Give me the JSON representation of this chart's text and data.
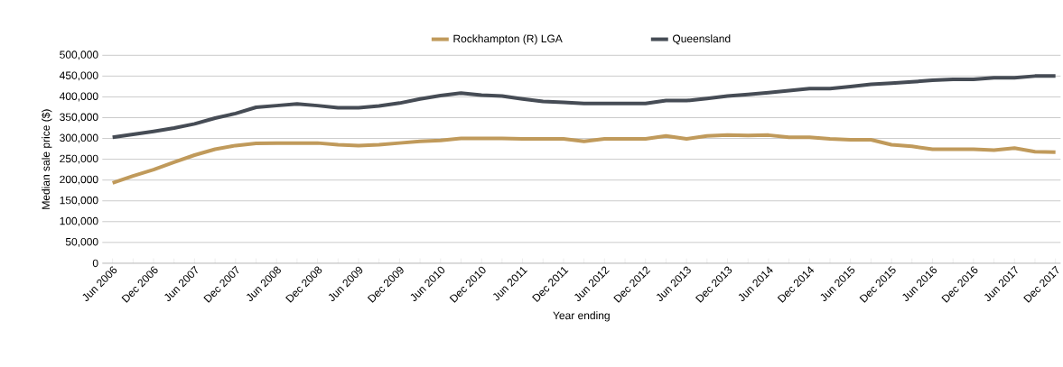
{
  "chart_data": {
    "type": "line",
    "xlabel": "Year ending",
    "ylabel": "Median sale price ($)",
    "categories": [
      "Jun 2006",
      null,
      "Dec 2006",
      null,
      "Jun 2007",
      null,
      "Dec 2007",
      null,
      "Jun 2008",
      null,
      "Dec 2008",
      null,
      "Jun 2009",
      null,
      "Dec 2009",
      null,
      "Jun 2010",
      null,
      "Dec 2010",
      null,
      "Jun 2011",
      null,
      "Dec 2011",
      null,
      "Jun 2012",
      null,
      "Dec 2012",
      null,
      "Jun 2013",
      null,
      "Dec 2013",
      null,
      "Jun 2014",
      null,
      "Dec 2014",
      null,
      "Jun 2015",
      null,
      "Dec 2015",
      null,
      "Jun 2016",
      null,
      "Dec 2016",
      null,
      "Jun 2017",
      null,
      "Dec 2017"
    ],
    "series": [
      {
        "name": "Rockhampton (R) LGA",
        "color": "#c09a5b",
        "values": [
          193000,
          210000,
          225000,
          243000,
          260000,
          274000,
          283000,
          288000,
          289000,
          289000,
          289000,
          285000,
          283000,
          285000,
          289000,
          293000,
          295000,
          300000,
          300000,
          300000,
          299000,
          299000,
          299000,
          293000,
          299000,
          299000,
          299000,
          306000,
          299000,
          306000,
          308000,
          307000,
          308000,
          303000,
          303000,
          299000,
          297000,
          297000,
          285000,
          281000,
          274000,
          274000,
          274000,
          272000,
          277000,
          268000,
          267000
        ]
      },
      {
        "name": "Queensland",
        "color": "#464c55",
        "values": [
          303000,
          310000,
          317000,
          325000,
          335000,
          349000,
          360000,
          375000,
          379000,
          383000,
          379000,
          374000,
          374000,
          378000,
          385000,
          395000,
          403000,
          409000,
          404000,
          402000,
          395000,
          389000,
          387000,
          384000,
          384000,
          384000,
          384000,
          391000,
          391000,
          396000,
          402000,
          406000,
          410000,
          415000,
          420000,
          420000,
          425000,
          430000,
          433000,
          436000,
          440000,
          442000,
          442000,
          446000,
          446000,
          450000,
          450000
        ]
      }
    ],
    "ylim": [
      0,
      500000
    ],
    "yticks": [
      {
        "value": 0,
        "label": "0"
      },
      {
        "value": 50000,
        "label": "50,000"
      },
      {
        "value": 100000,
        "label": "100,000"
      },
      {
        "value": 150000,
        "label": "150,000"
      },
      {
        "value": 200000,
        "label": "200,000"
      },
      {
        "value": 250000,
        "label": "250,000"
      },
      {
        "value": 300000,
        "label": "300,000"
      },
      {
        "value": 350000,
        "label": "350,000"
      },
      {
        "value": 400000,
        "label": "400,000"
      },
      {
        "value": 450000,
        "label": "450,000"
      },
      {
        "value": 500000,
        "label": "500,000"
      }
    ],
    "grid": "y",
    "legend": "top",
    "marker": "none",
    "line_style": "solid"
  }
}
